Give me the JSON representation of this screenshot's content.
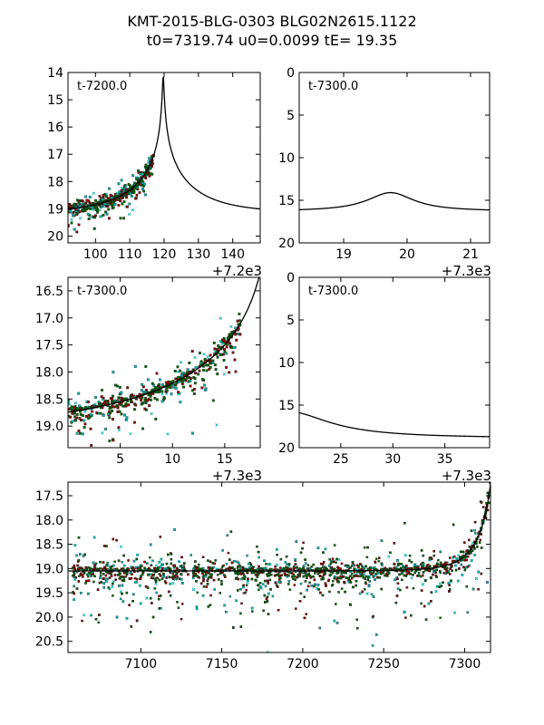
{
  "title_line1": "KMT-2015-BLG-0303 BLG02N2615.1122",
  "title_line2": "t0=7319.74 u0=0.0099 tE=  19.35",
  "chart_data": [
    {
      "id": "p1",
      "type": "scatter",
      "annotation": "t-7200.0",
      "offset_label": "+7.2e3",
      "xlim": [
        92,
        148
      ],
      "ylim": [
        20.25,
        14.0
      ],
      "xticks": [
        100,
        110,
        120,
        130,
        140
      ],
      "xtick_labels": [
        "100",
        "110",
        "120",
        "130",
        "140"
      ],
      "yticks": [
        14,
        15,
        16,
        17,
        18,
        19,
        20
      ],
      "ytick_labels": [
        "14",
        "15",
        "16",
        "17",
        "18",
        "19",
        "20"
      ],
      "model": {
        "t0": 7319.74,
        "u0": 0.0099,
        "tE": 19.35,
        "peak_mag": 14.0,
        "base_mag": 19.15,
        "shift": 100
      },
      "data_range": [
        92,
        117
      ]
    },
    {
      "id": "p2",
      "type": "scatter",
      "annotation": "t-7300.0",
      "offset_label": "+7.3e3",
      "xlim": [
        18.3,
        21.3
      ],
      "ylim": [
        20,
        0
      ],
      "xticks": [
        19,
        20,
        21
      ],
      "xtick_labels": [
        "19",
        "20",
        "21"
      ],
      "yticks": [
        0,
        5,
        10,
        15,
        20
      ],
      "ytick_labels": [
        "0",
        "5",
        "10",
        "15",
        "20"
      ],
      "model": {
        "t0": 19.74,
        "base_mag": 16.3,
        "peak_mag": 14.1,
        "width": 0.45
      },
      "data_range": null
    },
    {
      "id": "p3",
      "type": "scatter",
      "annotation": "t-7300.0",
      "offset_label": "+7.3e3",
      "xlim": [
        0,
        18.4
      ],
      "ylim": [
        19.4,
        16.25
      ],
      "xticks": [
        5,
        10,
        15
      ],
      "xtick_labels": [
        "5",
        "10",
        "15"
      ],
      "yticks": [
        16.5,
        17.0,
        17.5,
        18.0,
        18.5,
        19.0
      ],
      "ytick_labels": [
        "16.5",
        "17.0",
        "17.5",
        "18.0",
        "18.5",
        "19.0"
      ],
      "model": {
        "t0": 19.74,
        "u0": 0.0099,
        "tE": 19.35,
        "base_mag": 19.05,
        "shift": 0
      },
      "data_range": [
        0,
        16.5
      ]
    },
    {
      "id": "p4",
      "type": "scatter",
      "annotation": "t-7300.0",
      "offset_label": "+7.3e3",
      "xlim": [
        21,
        39.3
      ],
      "ylim": [
        20,
        0
      ],
      "xticks": [
        25,
        30,
        35
      ],
      "xtick_labels": [
        "25",
        "30",
        "35"
      ],
      "yticks": [
        0,
        5,
        10,
        15,
        20
      ],
      "ytick_labels": [
        "0",
        "5",
        "10",
        "15",
        "20"
      ],
      "model": {
        "t0": 19.74,
        "base_mag": 18.9,
        "amp": 3.2,
        "scale": 5.0
      },
      "data_range": null
    },
    {
      "id": "p5",
      "type": "scatter",
      "annotation": "",
      "offset_label": "",
      "xlim": [
        7055,
        7316
      ],
      "ylim": [
        20.73,
        17.22
      ],
      "xticks": [
        7100,
        7150,
        7200,
        7250,
        7300
      ],
      "xtick_labels": [
        "7100",
        "7150",
        "7200",
        "7250",
        "7300"
      ],
      "yticks": [
        17.5,
        18.0,
        18.5,
        19.0,
        19.5,
        20.0,
        20.5
      ],
      "ytick_labels": [
        "17.5",
        "18.0",
        "18.5",
        "19.0",
        "19.5",
        "20.0",
        "20.5"
      ],
      "model": {
        "t0": 7319.74,
        "u0": 0.0099,
        "tE": 19.35,
        "base_mag": 19.05,
        "shift": 0
      },
      "data_range": [
        7058,
        7316
      ]
    }
  ],
  "series_colors": {
    "kmtc": "#8b0000",
    "kmts": "#006400",
    "kmta": "#00b0b0",
    "model": "#000000"
  }
}
